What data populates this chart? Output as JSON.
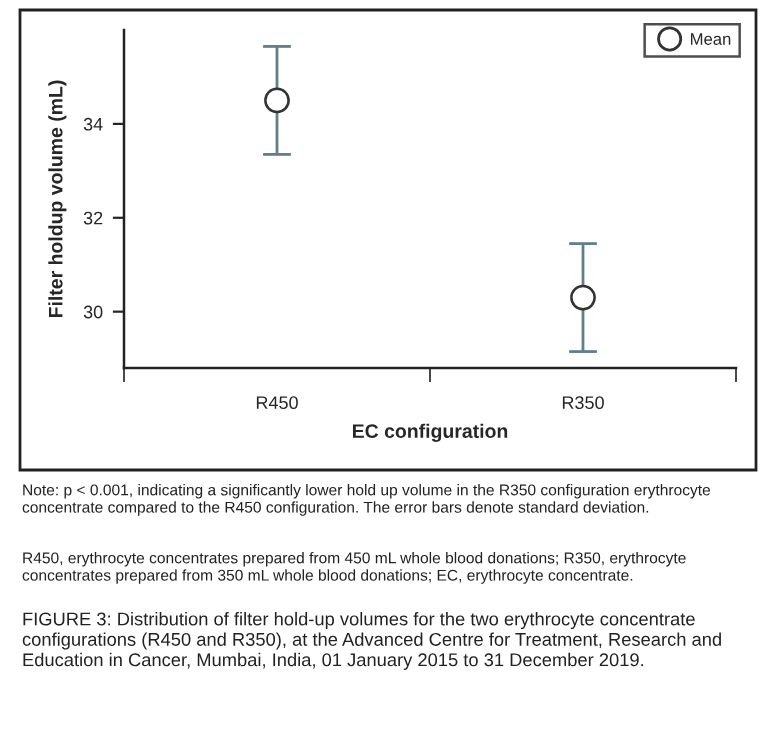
{
  "chart_data": {
    "type": "scatter",
    "xlabel": "EC configuration",
    "ylabel": "Filter holdup volume (mL)",
    "categories": [
      "R450",
      "R350"
    ],
    "series": [
      {
        "name": "Mean",
        "color": "#333333",
        "values": [
          34.5,
          30.3
        ],
        "errors": [
          1.15,
          1.15
        ]
      }
    ],
    "ylim": [
      28.8,
      36.0
    ],
    "yticks": [
      30,
      32,
      34
    ],
    "marker": "circle",
    "legend": "top right",
    "grid": false,
    "annotations": [
      "Note: p < 0.001, indicating a significantly lower hold up volume in the R350 configuration erythrocyte concentrate compared to the R450 configuration. The error bars denote standard deviation.",
      "R450, erythrocyte concentrates prepared from 450 mL whole blood donations; R350, erythrocyte concentrates prepared from 350 mL whole blood donations; EC, erythrocyte concentrate.",
      "FIGURE 3: Distribution of filter hold-up volumes for the two erythrocyte concentrate configurations (R450 and R350), at the Advanced Centre for Treatment, Research and Education in Cancer, Mumbai, India, 01 January 2015 to 31 December 2019."
    ]
  }
}
